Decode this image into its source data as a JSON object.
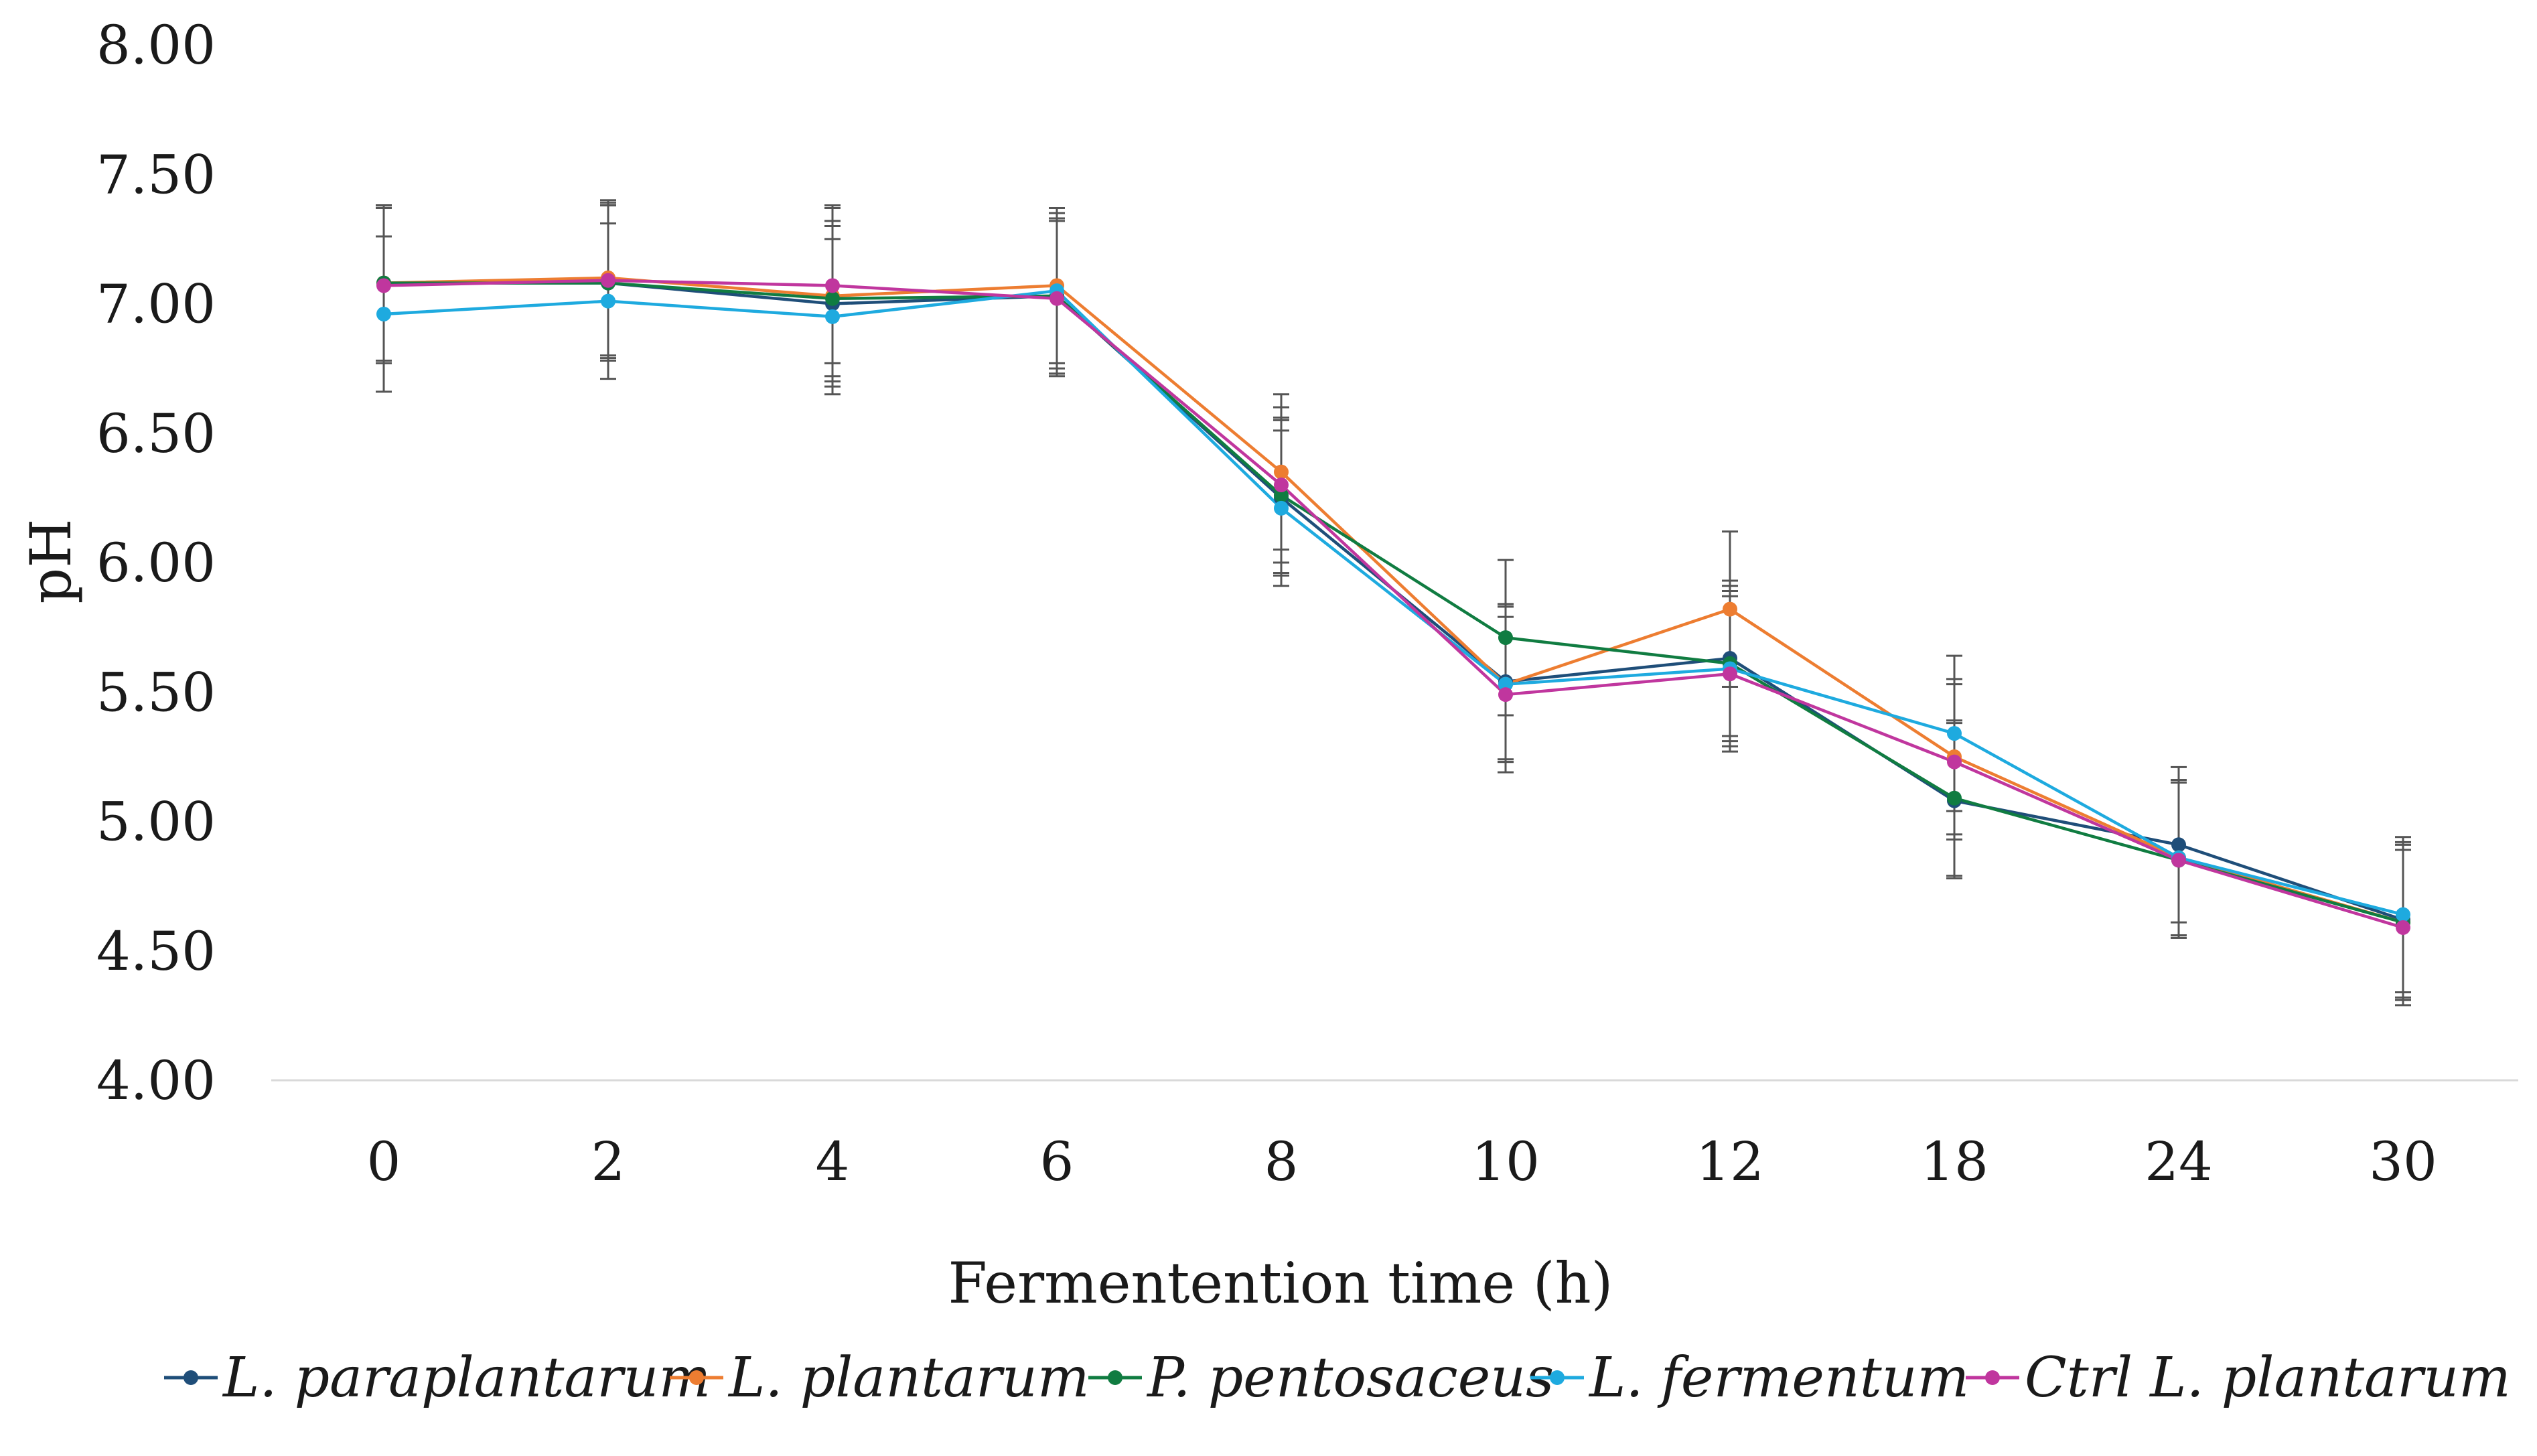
{
  "chart_data": {
    "type": "line",
    "title": "",
    "xlabel": "Fermentention time (h)",
    "ylabel": "pH",
    "ylim": [
      4.0,
      8.0
    ],
    "yticks": [
      "4.00",
      "4.50",
      "5.00",
      "5.50",
      "6.00",
      "6.50",
      "7.00",
      "7.50",
      "8.00"
    ],
    "categories": [
      "0",
      "2",
      "4",
      "6",
      "8",
      "10",
      "12",
      "18",
      "24",
      "30"
    ],
    "grid": "baseline only",
    "legend_position": "bottom",
    "error_bar_color": "#555555",
    "series": [
      {
        "name": "L. paraplantarum",
        "color": "#1f4e79",
        "values": [
          7.08,
          7.08,
          7.0,
          7.03,
          6.25,
          5.54,
          5.63,
          5.08,
          4.91,
          4.62
        ],
        "errors": [
          0.3,
          0.3,
          0.3,
          0.3,
          0.3,
          0.3,
          0.3,
          0.3,
          0.3,
          0.3
        ]
      },
      {
        "name": "L. plantarum",
        "color": "#ed7d31",
        "values": [
          7.08,
          7.1,
          7.03,
          7.07,
          6.35,
          5.53,
          5.82,
          5.25,
          4.86,
          4.61
        ],
        "errors": [
          0.3,
          0.3,
          0.35,
          0.3,
          0.3,
          0.3,
          0.3,
          0.3,
          0.3,
          0.3
        ]
      },
      {
        "name": "P. pentosaceus",
        "color": "#107c41",
        "values": [
          7.08,
          7.08,
          7.02,
          7.03,
          6.26,
          5.71,
          5.61,
          5.09,
          4.85,
          4.61
        ],
        "errors": [
          0.3,
          0.3,
          0.3,
          0.3,
          0.3,
          0.3,
          0.3,
          0.3,
          0.3,
          0.3
        ]
      },
      {
        "name": "L. fermentum",
        "color": "#1eaadf",
        "values": [
          6.96,
          7.01,
          6.95,
          7.05,
          6.21,
          5.53,
          5.59,
          5.34,
          4.86,
          4.64
        ],
        "errors": [
          0.3,
          0.3,
          0.3,
          0.3,
          0.3,
          0.3,
          0.3,
          0.3,
          0.3,
          0.3
        ]
      },
      {
        "name": "Ctrl L. plantarum",
        "color": "#c0369e",
        "values": [
          7.07,
          7.09,
          7.07,
          7.02,
          6.3,
          5.49,
          5.57,
          5.23,
          4.85,
          4.59
        ],
        "errors": [
          0.3,
          0.3,
          0.3,
          0.3,
          0.3,
          0.3,
          0.3,
          0.3,
          0.3,
          0.3
        ]
      }
    ]
  }
}
